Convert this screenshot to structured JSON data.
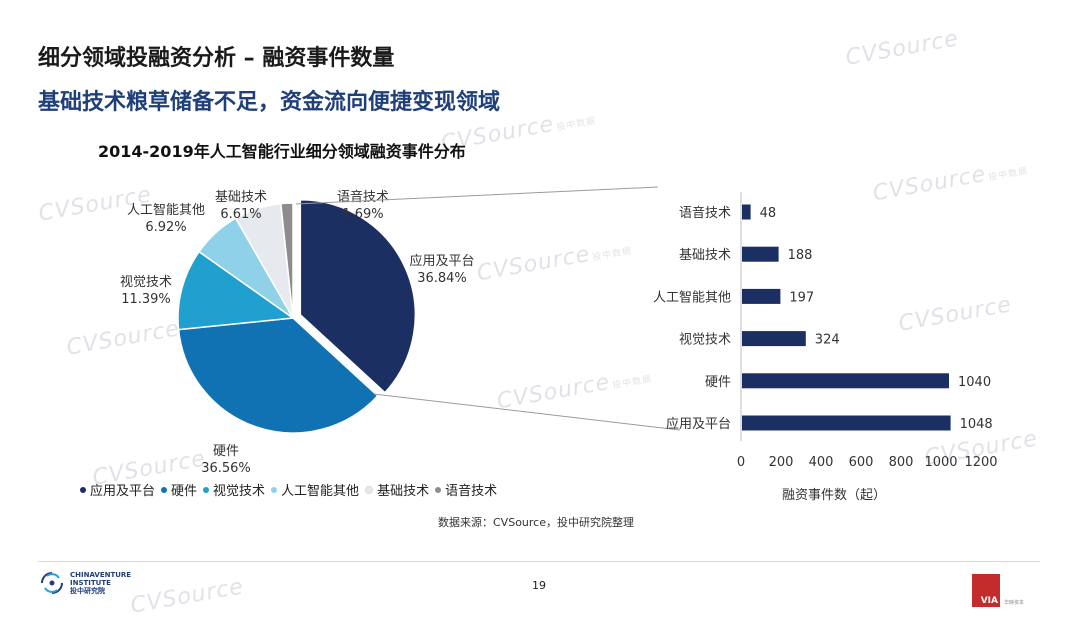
{
  "header": {
    "title": "细分领域投融资分析 – 融资事件数量",
    "subtitle": "基础技术粮草储备不足，资金流向便捷变现领域"
  },
  "colors": {
    "应用及平台": "#1b2f63",
    "硬件": "#1172b3",
    "视觉技术": "#1fa0cf",
    "人工智能其他": "#8fd1e8",
    "基础技术": "#e6e9ee",
    "语音技术": "#8c8c8c",
    "bar": "#1b2f63"
  },
  "chart_data": [
    {
      "type": "pie",
      "title": "2014-2019年人工智能行业细分领域融资事件分布",
      "slices": [
        {
          "label": "应用及平台",
          "value": 36.84,
          "pct_label": "36.84%"
        },
        {
          "label": "硬件",
          "value": 36.56,
          "pct_label": "36.56%"
        },
        {
          "label": "视觉技术",
          "value": 11.39,
          "pct_label": "11.39%"
        },
        {
          "label": "人工智能其他",
          "value": 6.92,
          "pct_label": "6.92%"
        },
        {
          "label": "基础技术",
          "value": 6.61,
          "pct_label": "6.61%"
        },
        {
          "label": "语音技术",
          "value": 1.69,
          "pct_label": "1.69%"
        }
      ],
      "legend": [
        "应用及平台",
        "硬件",
        "视觉技术",
        "人工智能其他",
        "基础技术",
        "语音技术"
      ],
      "legend_position": "bottom"
    },
    {
      "type": "bar",
      "orientation": "horizontal",
      "categories": [
        "语音技术",
        "基础技术",
        "人工智能其他",
        "视觉技术",
        "硬件",
        "应用及平台"
      ],
      "values": [
        48,
        188,
        197,
        324,
        1040,
        1048
      ],
      "xlabel": "融资事件数（起）",
      "xlim": [
        0,
        1200
      ],
      "xticks": [
        0,
        200,
        400,
        600,
        800,
        1000,
        1200
      ],
      "grid": false
    }
  ],
  "footer": {
    "source": "数据来源：CVSource，投中研究院整理",
    "page": "19",
    "logo_left_line1": "CHINAVENTURE",
    "logo_left_line2": "INSTITUTE",
    "logo_left_line3": "投中研究院",
    "logo_right_mark": "VIA",
    "logo_right_text": "华映资本"
  },
  "watermark": {
    "brand": "CVSource",
    "sub": "投中数据"
  }
}
